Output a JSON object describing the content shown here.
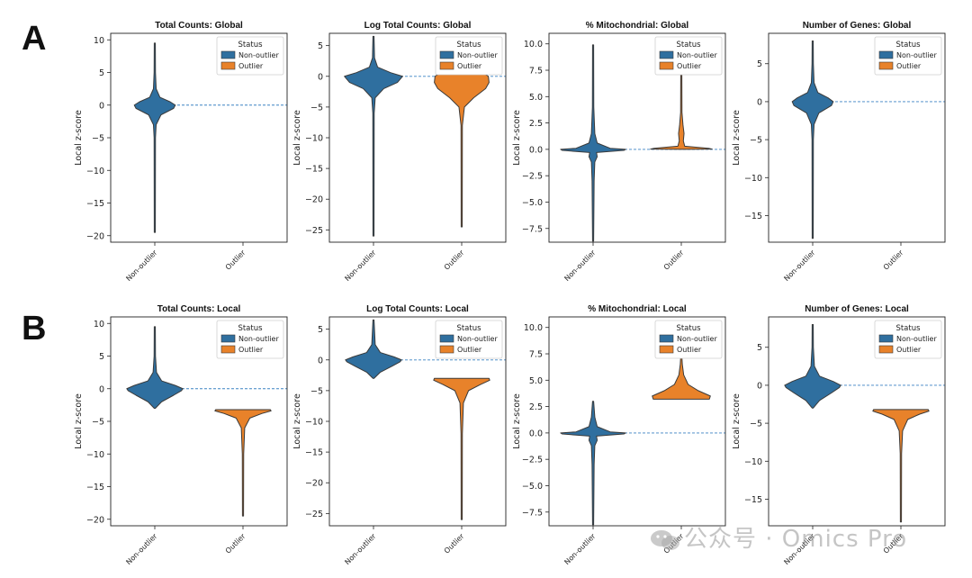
{
  "rows": [
    {
      "label": "A"
    },
    {
      "label": "B"
    }
  ],
  "colors": {
    "non_outlier": "#2f6f9f",
    "outlier": "#e8822a",
    "edge": "#3a3a3a",
    "refline": "#3b82c4"
  },
  "watermark": "公众号 · Omics Pro",
  "chart_data": [
    {
      "type": "violin",
      "row": "A",
      "title": "Total Counts: Global",
      "ylabel": "Local z-score",
      "categories": [
        "Non-outlier",
        "Outlier"
      ],
      "ylim": [
        -21,
        11
      ],
      "yticks": [
        10,
        5,
        0,
        -5,
        -10,
        -15,
        -20
      ],
      "legend": {
        "title": "Status",
        "entries": [
          "Non-outlier",
          "Outlier"
        ],
        "position": "top-right"
      },
      "reference_line": 0,
      "violins": [
        {
          "category": "Non-outlier",
          "min": -19.5,
          "max": 9.5,
          "profile": [
            [
              -19.5,
              0.01
            ],
            [
              -5,
              0.02
            ],
            [
              -3,
              0.04
            ],
            [
              -1.5,
              0.18
            ],
            [
              -0.5,
              0.55
            ],
            [
              0,
              0.6
            ],
            [
              0.5,
              0.45
            ],
            [
              1.2,
              0.15
            ],
            [
              2.5,
              0.04
            ],
            [
              5,
              0.02
            ],
            [
              9.5,
              0.01
            ]
          ]
        }
      ]
    },
    {
      "type": "violin",
      "row": "A",
      "title": "Log Total Counts: Global",
      "ylabel": "Local z-score",
      "categories": [
        "Non-outlier",
        "Outlier"
      ],
      "ylim": [
        -27,
        7
      ],
      "yticks": [
        5,
        0,
        -5,
        -10,
        -15,
        -20,
        -25
      ],
      "legend": {
        "title": "Status",
        "entries": [
          "Non-outlier",
          "Outlier"
        ],
        "position": "top-right"
      },
      "reference_line": 0,
      "violins": [
        {
          "category": "Non-outlier",
          "min": -26,
          "max": 6.5,
          "profile": [
            [
              -26,
              0.01
            ],
            [
              -6,
              0.02
            ],
            [
              -3.5,
              0.05
            ],
            [
              -2,
              0.3
            ],
            [
              -1,
              0.7
            ],
            [
              0,
              0.85
            ],
            [
              0.6,
              0.5
            ],
            [
              1.5,
              0.12
            ],
            [
              3,
              0.03
            ],
            [
              6.5,
              0.01
            ]
          ]
        },
        {
          "category": "Outlier",
          "min": -24.5,
          "max": 1.5,
          "profile": [
            [
              -24.5,
              0.01
            ],
            [
              -8,
              0.02
            ],
            [
              -5,
              0.08
            ],
            [
              -3.5,
              0.35
            ],
            [
              -2,
              0.7
            ],
            [
              -1,
              0.8
            ],
            [
              0,
              0.78
            ],
            [
              0.8,
              0.55
            ],
            [
              1.5,
              0.05
            ]
          ]
        }
      ]
    },
    {
      "type": "violin",
      "row": "A",
      "title": "% Mitochondrial: Global",
      "ylabel": "Local z-score",
      "categories": [
        "Non-outlier",
        "Outlier"
      ],
      "ylim": [
        -8.8,
        11
      ],
      "yticks": [
        10.0,
        7.5,
        5.0,
        2.5,
        0.0,
        -2.5,
        -5.0,
        -7.5
      ],
      "legend": {
        "title": "Status",
        "entries": [
          "Non-outlier",
          "Outlier"
        ],
        "position": "top-right"
      },
      "reference_line": 0,
      "violins": [
        {
          "category": "Non-outlier",
          "min": -8.7,
          "max": 9.9,
          "profile": [
            [
              -8.7,
              0.01
            ],
            [
              -3,
              0.03
            ],
            [
              -1.2,
              0.05
            ],
            [
              -0.7,
              0.12
            ],
            [
              -0.3,
              0.1
            ],
            [
              -0.1,
              0.9
            ],
            [
              0,
              0.95
            ],
            [
              0.1,
              0.5
            ],
            [
              0.6,
              0.12
            ],
            [
              1.5,
              0.05
            ],
            [
              4,
              0.02
            ],
            [
              9.9,
              0.01
            ]
          ]
        },
        {
          "category": "Outlier",
          "min": 0,
          "max": 7.3,
          "profile": [
            [
              0,
              0.01
            ],
            [
              0.02,
              0.9
            ],
            [
              0.1,
              0.8
            ],
            [
              0.3,
              0.1
            ],
            [
              0.8,
              0.06
            ],
            [
              1.5,
              0.08
            ],
            [
              2.3,
              0.05
            ],
            [
              3.5,
              0.02
            ],
            [
              7.3,
              0.01
            ]
          ]
        }
      ]
    },
    {
      "type": "violin",
      "row": "A",
      "title": "Number of Genes: Global",
      "ylabel": "Local z-score",
      "categories": [
        "Non-outlier",
        "Outlier"
      ],
      "ylim": [
        -18.5,
        9
      ],
      "yticks": [
        5,
        0,
        -5,
        -10,
        -15
      ],
      "legend": {
        "title": "Status",
        "entries": [
          "Non-outlier",
          "Outlier"
        ],
        "position": "top-right"
      },
      "reference_line": 0,
      "violins": [
        {
          "category": "Non-outlier",
          "min": -18,
          "max": 8,
          "profile": [
            [
              -18,
              0.01
            ],
            [
              -5,
              0.02
            ],
            [
              -3,
              0.04
            ],
            [
              -1.5,
              0.18
            ],
            [
              -0.5,
              0.55
            ],
            [
              0,
              0.6
            ],
            [
              0.5,
              0.45
            ],
            [
              1.2,
              0.15
            ],
            [
              2.5,
              0.04
            ],
            [
              5,
              0.02
            ],
            [
              8,
              0.01
            ]
          ]
        }
      ]
    },
    {
      "type": "violin",
      "row": "B",
      "title": "Total Counts: Local",
      "ylabel": "Local z-score",
      "categories": [
        "Non-outlier",
        "Outlier"
      ],
      "ylim": [
        -21,
        11
      ],
      "yticks": [
        10,
        5,
        0,
        -5,
        -10,
        -15,
        -20
      ],
      "legend": {
        "title": "Status",
        "entries": [
          "Non-outlier",
          "Outlier"
        ],
        "position": "top-right"
      },
      "reference_line": 0,
      "violins": [
        {
          "category": "Non-outlier",
          "min": -3,
          "max": 9.5,
          "profile": [
            [
              -3,
              0.01
            ],
            [
              -2,
              0.2
            ],
            [
              -1,
              0.55
            ],
            [
              -0.3,
              0.78
            ],
            [
              0,
              0.82
            ],
            [
              0.5,
              0.6
            ],
            [
              1.2,
              0.2
            ],
            [
              2.5,
              0.05
            ],
            [
              5,
              0.02
            ],
            [
              9.5,
              0.01
            ]
          ]
        },
        {
          "category": "Outlier",
          "min": -19.5,
          "max": -3.2,
          "profile": [
            [
              -19.5,
              0.01
            ],
            [
              -10,
              0.02
            ],
            [
              -6,
              0.05
            ],
            [
              -4.5,
              0.2
            ],
            [
              -3.8,
              0.55
            ],
            [
              -3.4,
              0.82
            ],
            [
              -3.2,
              0.8
            ]
          ]
        }
      ]
    },
    {
      "type": "violin",
      "row": "B",
      "title": "Log Total Counts: Local",
      "ylabel": "Local z-score",
      "categories": [
        "Non-outlier",
        "Outlier"
      ],
      "ylim": [
        -27,
        7
      ],
      "yticks": [
        5,
        0,
        -5,
        -10,
        -15,
        -20,
        -25
      ],
      "legend": {
        "title": "Status",
        "entries": [
          "Non-outlier",
          "Outlier"
        ],
        "position": "top-right"
      },
      "reference_line": 0,
      "violins": [
        {
          "category": "Non-outlier",
          "min": -3,
          "max": 6.5,
          "profile": [
            [
              -3,
              0.01
            ],
            [
              -2,
              0.2
            ],
            [
              -1,
              0.55
            ],
            [
              -0.3,
              0.78
            ],
            [
              0,
              0.82
            ],
            [
              0.5,
              0.6
            ],
            [
              1.2,
              0.2
            ],
            [
              2.5,
              0.05
            ],
            [
              6.5,
              0.01
            ]
          ]
        },
        {
          "category": "Outlier",
          "min": -26,
          "max": -3,
          "profile": [
            [
              -26,
              0.01
            ],
            [
              -12,
              0.02
            ],
            [
              -7,
              0.05
            ],
            [
              -5,
              0.2
            ],
            [
              -4,
              0.55
            ],
            [
              -3.3,
              0.82
            ],
            [
              -3,
              0.8
            ]
          ]
        }
      ]
    },
    {
      "type": "violin",
      "row": "B",
      "title": "% Mitochondrial: Local",
      "ylabel": "Local z-score",
      "categories": [
        "Non-outlier",
        "Outlier"
      ],
      "ylim": [
        -8.8,
        11
      ],
      "yticks": [
        10.0,
        7.5,
        5.0,
        2.5,
        0.0,
        -2.5,
        -5.0,
        -7.5
      ],
      "legend": {
        "title": "Status",
        "entries": [
          "Non-outlier",
          "Outlier"
        ],
        "position": "top-right"
      },
      "reference_line": 0,
      "violins": [
        {
          "category": "Non-outlier",
          "min": -8.7,
          "max": 3,
          "profile": [
            [
              -8.7,
              0.01
            ],
            [
              -3,
              0.03
            ],
            [
              -1.2,
              0.05
            ],
            [
              -0.7,
              0.12
            ],
            [
              -0.3,
              0.1
            ],
            [
              -0.1,
              0.9
            ],
            [
              0,
              0.95
            ],
            [
              0.1,
              0.5
            ],
            [
              0.6,
              0.12
            ],
            [
              1.5,
              0.05
            ],
            [
              3,
              0.01
            ]
          ]
        },
        {
          "category": "Outlier",
          "min": 3.2,
          "max": 7.3,
          "profile": [
            [
              3.2,
              0.82
            ],
            [
              3.5,
              0.85
            ],
            [
              4,
              0.5
            ],
            [
              4.6,
              0.2
            ],
            [
              5.5,
              0.07
            ],
            [
              6.5,
              0.03
            ],
            [
              7.3,
              0.01
            ]
          ]
        }
      ]
    },
    {
      "type": "violin",
      "row": "B",
      "title": "Number of Genes: Local",
      "ylabel": "Local z-score",
      "categories": [
        "Non-outlier",
        "Outlier"
      ],
      "ylim": [
        -18.5,
        9
      ],
      "yticks": [
        5,
        0,
        -5,
        -10,
        -15
      ],
      "legend": {
        "title": "Status",
        "entries": [
          "Non-outlier",
          "Outlier"
        ],
        "position": "top-right"
      },
      "reference_line": 0,
      "violins": [
        {
          "category": "Non-outlier",
          "min": -3,
          "max": 8,
          "profile": [
            [
              -3,
              0.01
            ],
            [
              -2,
              0.2
            ],
            [
              -1,
              0.55
            ],
            [
              -0.3,
              0.78
            ],
            [
              0,
              0.82
            ],
            [
              0.5,
              0.6
            ],
            [
              1.2,
              0.2
            ],
            [
              2.5,
              0.05
            ],
            [
              5,
              0.02
            ],
            [
              8,
              0.01
            ]
          ]
        },
        {
          "category": "Outlier",
          "min": -18,
          "max": -3.2,
          "profile": [
            [
              -18,
              0.01
            ],
            [
              -9,
              0.02
            ],
            [
              -6,
              0.05
            ],
            [
              -4.5,
              0.2
            ],
            [
              -3.8,
              0.55
            ],
            [
              -3.4,
              0.82
            ],
            [
              -3.2,
              0.8
            ]
          ]
        }
      ]
    }
  ]
}
